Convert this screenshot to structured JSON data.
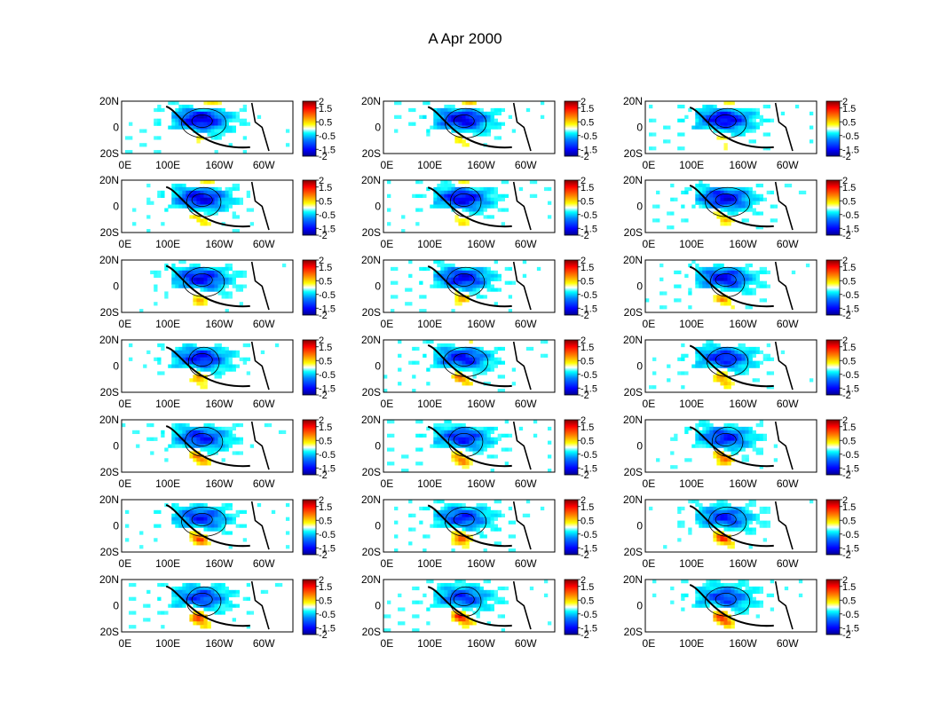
{
  "chart_data": {
    "type": "heatmap",
    "title": "A Apr 2000",
    "grid": {
      "rows": 7,
      "cols": 3
    },
    "panel_count": 21,
    "x_tick_labels": [
      "0E",
      "100E",
      "160W",
      "60W"
    ],
    "y_tick_labels": [
      "20N",
      "0",
      "20S"
    ],
    "colorbar": {
      "range": [
        -2,
        2
      ],
      "tick_labels": [
        "2",
        "1.5",
        "0.5",
        "-0.5",
        "-1.5",
        "-2"
      ],
      "colormap": "jet",
      "colors": [
        "#00008f",
        "#0000ff",
        "#0080ff",
        "#00ffff",
        "#ffffff",
        "#ffff00",
        "#ff8000",
        "#ff0000",
        "#800000"
      ]
    },
    "land_color": "#ffffff",
    "contour_color": "#000000"
  }
}
